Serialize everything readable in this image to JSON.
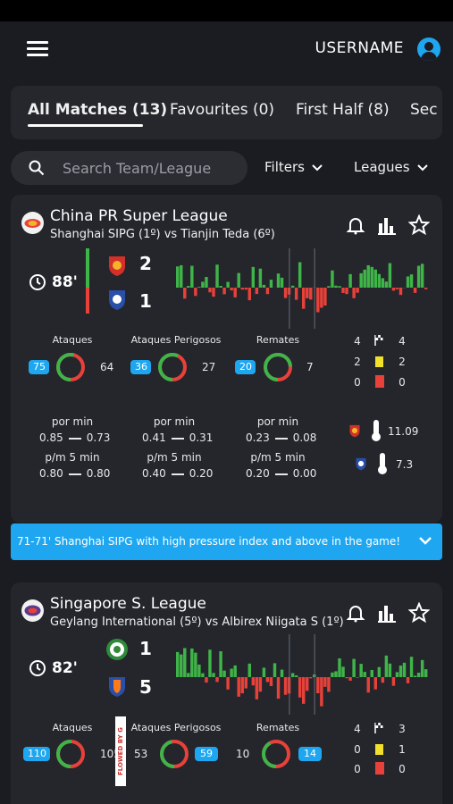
{
  "header": {
    "username": "USERNAME",
    "menu_icon": "hamburger-menu-icon",
    "user_icon": "user-avatar-icon"
  },
  "tabs": [
    "All Matches (13)",
    "Favourites (0)",
    "First Half (8)",
    "Sec"
  ],
  "search": {
    "placeholder": "Search Team/League",
    "filters_label": "Filters",
    "leagues_label": "Leagues"
  },
  "colors": {
    "accent": "#1ea7f0",
    "positive": "#3fb549",
    "negative": "#e8413a",
    "yellow_card": "#f2e12a",
    "background": "#1b1c21",
    "card": "#24262c"
  },
  "matches": [
    {
      "league": "China PR Super League",
      "title": "Shanghai SIPG (1º) vs Tianjin Teda (6º)",
      "minute": "88'",
      "home_score": "2",
      "away_score": "1",
      "stats": {
        "labels": [
          "Ataques",
          "Ataques Perigosos",
          "Remates"
        ],
        "home": [
          "75",
          "36",
          "20"
        ],
        "away": [
          "64",
          "27",
          "7"
        ],
        "home_share": [
          0.54,
          0.57,
          0.74
        ]
      },
      "counts": {
        "corners": [
          "4",
          "4"
        ],
        "yellow": [
          "2",
          "2"
        ],
        "red": [
          "0",
          "0"
        ]
      },
      "rates": {
        "por_min_label": "por min",
        "p5_label": "p/m 5 min",
        "por_min": [
          [
            "0.85",
            "0.73"
          ],
          [
            "0.41",
            "0.31"
          ],
          [
            "0.23",
            "0.08"
          ]
        ],
        "p5": [
          [
            "0.80",
            "0.80"
          ],
          [
            "0.40",
            "0.20"
          ],
          [
            "0.20",
            "0.00"
          ]
        ]
      },
      "pressure": {
        "home": "11.09",
        "away": "7.3"
      }
    },
    {
      "league": "Singapore S. League",
      "title": "Geylang International (5º) vs Albirex Niigata S (1º)",
      "minute": "82'",
      "home_score": "1",
      "away_score": "5",
      "stats": {
        "labels": [
          "Ataques",
          "Ataques Perigosos",
          "Remates"
        ],
        "home": [
          "110",
          "53",
          "10"
        ],
        "away": [
          "105",
          "59",
          "14"
        ],
        "home_share": [
          0.51,
          0.47,
          0.42
        ]
      },
      "counts": {
        "corners": [
          "4",
          "3"
        ],
        "yellow": [
          "0",
          "1"
        ],
        "red": [
          "0",
          "0"
        ]
      }
    }
  ],
  "alert": {
    "text": "71-71' Shanghai SIPG with high pressure index and above in the game!"
  },
  "watermark": "FLOWED BY G"
}
